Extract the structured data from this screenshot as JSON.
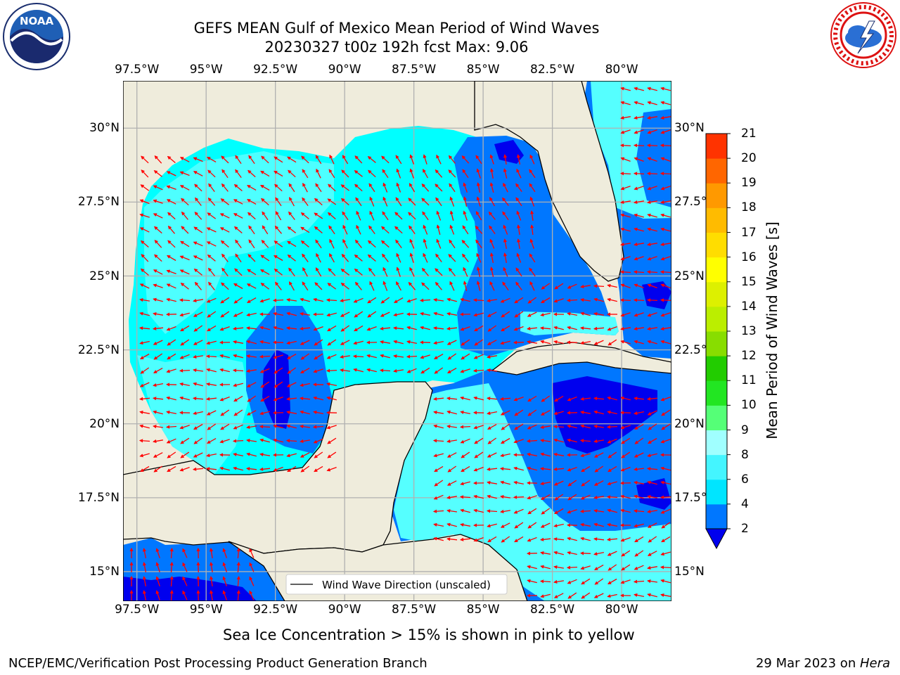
{
  "title": {
    "line1": "GEFS MEAN Gulf of Mexico Mean Period of Wind Waves",
    "line2": "20230327 t00z 192h fcst   Max: 9.06"
  },
  "logos": {
    "left": {
      "icon": "noaa-logo-icon",
      "text": "NOAA"
    },
    "right": {
      "icon": "national-weather-service-logo-icon"
    }
  },
  "axes": {
    "lon_labels": [
      "97.5°W",
      "95°W",
      "92.5°W",
      "90°W",
      "87.5°W",
      "85°W",
      "82.5°W",
      "80°W"
    ],
    "lon_values": [
      -97.5,
      -95,
      -92.5,
      -90,
      -87.5,
      -85,
      -82.5,
      -80
    ],
    "lat_labels": [
      "30°N",
      "27.5°N",
      "25°N",
      "22.5°N",
      "20°N",
      "17.5°N",
      "15°N"
    ],
    "lat_values": [
      30,
      27.5,
      25,
      22.5,
      20,
      17.5,
      15
    ],
    "lon_range": [
      -98,
      -78.2
    ],
    "lat_range": [
      14,
      31.6
    ]
  },
  "legend": {
    "label": "Wind Wave Direction (unscaled)"
  },
  "colorbar": {
    "label": "Mean Period of Wind Waves [s]",
    "ticks": [
      "2",
      "4",
      "6",
      "8",
      "9",
      "10",
      "11",
      "12",
      "13",
      "14",
      "15",
      "16",
      "17",
      "18",
      "19",
      "20",
      "21"
    ],
    "colors": [
      "#0077ff",
      "#00e5ff",
      "#44f5ff",
      "#a0ffff",
      "#55ff77",
      "#22e622",
      "#22cc00",
      "#88dd00",
      "#bbee00",
      "#ddf000",
      "#ffff00",
      "#ffdd00",
      "#ffbb00",
      "#ff9900",
      "#ff6600",
      "#ff3300"
    ],
    "under_color": "#0000ee"
  },
  "notes": {
    "sea_ice": "Sea Ice Concentration > 15% is shown in pink to yellow",
    "branch": "NCEP/EMC/Verification Post Processing Product Generation Branch",
    "date": "29 Mar 2023 on ",
    "machine": "Hera"
  },
  "colors": {
    "land": "#efecdc",
    "water_low": "#0000ee",
    "water_2_4": "#0077ff",
    "water_4_6": "#00ffff",
    "water_6_8": "#55ffff",
    "arrow": "#ff0000",
    "grid": "#b0b0b0"
  }
}
